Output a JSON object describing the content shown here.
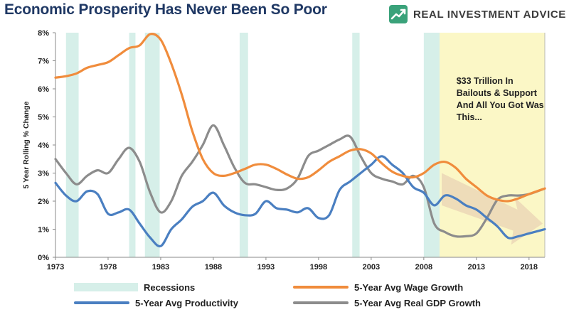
{
  "header": {
    "title": "Economic Prosperity Has Never Been So Poor",
    "brand": "REAL INVESTMENT ADVICE"
  },
  "colors": {
    "wage": "#f08c3c",
    "productivity": "#4a7fc1",
    "gdp": "#8c8c8c",
    "recession": "#d6efe9",
    "highlight": "#fbf7c6",
    "title": "#1f3864",
    "brand_green": "#3aa27a"
  },
  "icons": {
    "logo": "rising-chart-logo-icon",
    "arrow": "downtrend-arrow-icon"
  },
  "chart_data": {
    "type": "line",
    "title": "",
    "xlabel": "",
    "ylabel": "5 Year Rolling % Change",
    "xlim": [
      1973,
      2019.5
    ],
    "ylim": [
      0,
      8
    ],
    "x_ticks": [
      1973,
      1978,
      1983,
      1988,
      1993,
      1998,
      2003,
      2008,
      2013,
      2018
    ],
    "x_tick_labels": [
      "1973",
      "1978",
      "1983",
      "1988",
      "1993",
      "1998",
      "2003",
      "2008",
      "2013",
      "2018"
    ],
    "y_ticks": [
      0,
      1,
      2,
      3,
      4,
      5,
      6,
      7,
      8
    ],
    "y_tick_labels": [
      "0%",
      "1%",
      "2%",
      "3%",
      "4%",
      "5%",
      "6%",
      "7%",
      "8%"
    ],
    "grid": false,
    "legend_position": "bottom",
    "recessions": [
      [
        1974,
        1975.2
      ],
      [
        1980,
        1980.6
      ],
      [
        1981.5,
        1982.9
      ],
      [
        1990.5,
        1991.3
      ],
      [
        2001.2,
        2001.9
      ],
      [
        2008,
        2009.5
      ]
    ],
    "highlight_span": [
      2009.5,
      2019.5
    ],
    "annotation": {
      "lines": [
        "$33 Trillion In",
        "Bailouts & Support",
        "And All You Got Was",
        "This..."
      ],
      "x": 2011.1,
      "y": 6.18
    },
    "legend": {
      "recessions": "Recessions",
      "wage": "5-Year Avg Wage Growth",
      "productivity": "5-Year Avg Productivity",
      "gdp": "5-Year Avg Real GDP Growth"
    },
    "series": [
      {
        "name": "5-Year Avg Wage Growth",
        "key": "wage",
        "x": [
          1973,
          1974,
          1975,
          1976,
          1977,
          1978,
          1979,
          1980,
          1981,
          1982,
          1983,
          1984,
          1985,
          1986,
          1987,
          1988,
          1989,
          1990,
          1991,
          1992,
          1993,
          1994,
          1995,
          1996,
          1997,
          1998,
          1999,
          2000,
          2001,
          2002,
          2003,
          2004,
          2005,
          2006,
          2007,
          2008,
          2009,
          2010,
          2011,
          2012,
          2013,
          2014,
          2015,
          2016,
          2017,
          2018,
          2019.5
        ],
        "values": [
          6.4,
          6.45,
          6.55,
          6.75,
          6.85,
          6.95,
          7.2,
          7.45,
          7.55,
          7.95,
          7.75,
          6.9,
          5.8,
          4.5,
          3.5,
          3.0,
          2.9,
          3.0,
          3.15,
          3.3,
          3.3,
          3.15,
          2.95,
          2.8,
          2.85,
          3.1,
          3.4,
          3.6,
          3.8,
          3.85,
          3.7,
          3.35,
          3.05,
          2.9,
          2.85,
          3.0,
          3.3,
          3.4,
          3.2,
          2.8,
          2.5,
          2.2,
          2.05,
          2.0,
          2.1,
          2.25,
          2.45
        ]
      },
      {
        "name": "5-Year Avg Productivity",
        "key": "productivity",
        "x": [
          1973,
          1974,
          1975,
          1976,
          1977,
          1978,
          1979,
          1980,
          1981,
          1982,
          1983,
          1984,
          1985,
          1986,
          1987,
          1988,
          1989,
          1990,
          1991,
          1992,
          1993,
          1994,
          1995,
          1996,
          1997,
          1998,
          1999,
          2000,
          2001,
          2002,
          2003,
          2004,
          2005,
          2006,
          2007,
          2008,
          2009,
          2010,
          2011,
          2012,
          2013,
          2014,
          2015,
          2016,
          2017,
          2018,
          2019.5
        ],
        "values": [
          2.65,
          2.2,
          2.0,
          2.35,
          2.25,
          1.55,
          1.6,
          1.7,
          1.2,
          0.7,
          0.4,
          1.0,
          1.35,
          1.8,
          2.0,
          2.3,
          1.85,
          1.6,
          1.5,
          1.55,
          2.0,
          1.75,
          1.7,
          1.6,
          1.75,
          1.4,
          1.5,
          2.4,
          2.7,
          3.0,
          3.3,
          3.6,
          3.3,
          3.0,
          2.5,
          2.3,
          1.85,
          2.2,
          2.1,
          1.85,
          1.7,
          1.4,
          1.1,
          0.7,
          0.75,
          0.85,
          1.0
        ]
      },
      {
        "name": "5-Year Avg Real GDP Growth",
        "key": "gdp",
        "x": [
          1973,
          1974,
          1975,
          1976,
          1977,
          1978,
          1979,
          1980,
          1981,
          1982,
          1983,
          1984,
          1985,
          1986,
          1987,
          1988,
          1989,
          1990,
          1991,
          1992,
          1993,
          1994,
          1995,
          1996,
          1997,
          1998,
          1999,
          2000,
          2001,
          2002,
          2003,
          2004,
          2005,
          2006,
          2007,
          2008,
          2009,
          2010,
          2011,
          2012,
          2013,
          2014,
          2015,
          2016,
          2017,
          2018,
          2019.5
        ],
        "values": [
          3.5,
          3.0,
          2.6,
          2.9,
          3.1,
          3.0,
          3.5,
          3.9,
          3.4,
          2.3,
          1.6,
          2.0,
          2.9,
          3.4,
          4.0,
          4.7,
          4.0,
          3.2,
          2.65,
          2.6,
          2.5,
          2.4,
          2.45,
          2.8,
          3.6,
          3.8,
          4.0,
          4.2,
          4.3,
          3.6,
          3.0,
          2.8,
          2.7,
          2.6,
          2.9,
          2.5,
          1.2,
          0.9,
          0.75,
          0.75,
          0.85,
          1.4,
          2.05,
          2.2,
          2.2,
          2.25,
          2.45
        ]
      }
    ]
  }
}
